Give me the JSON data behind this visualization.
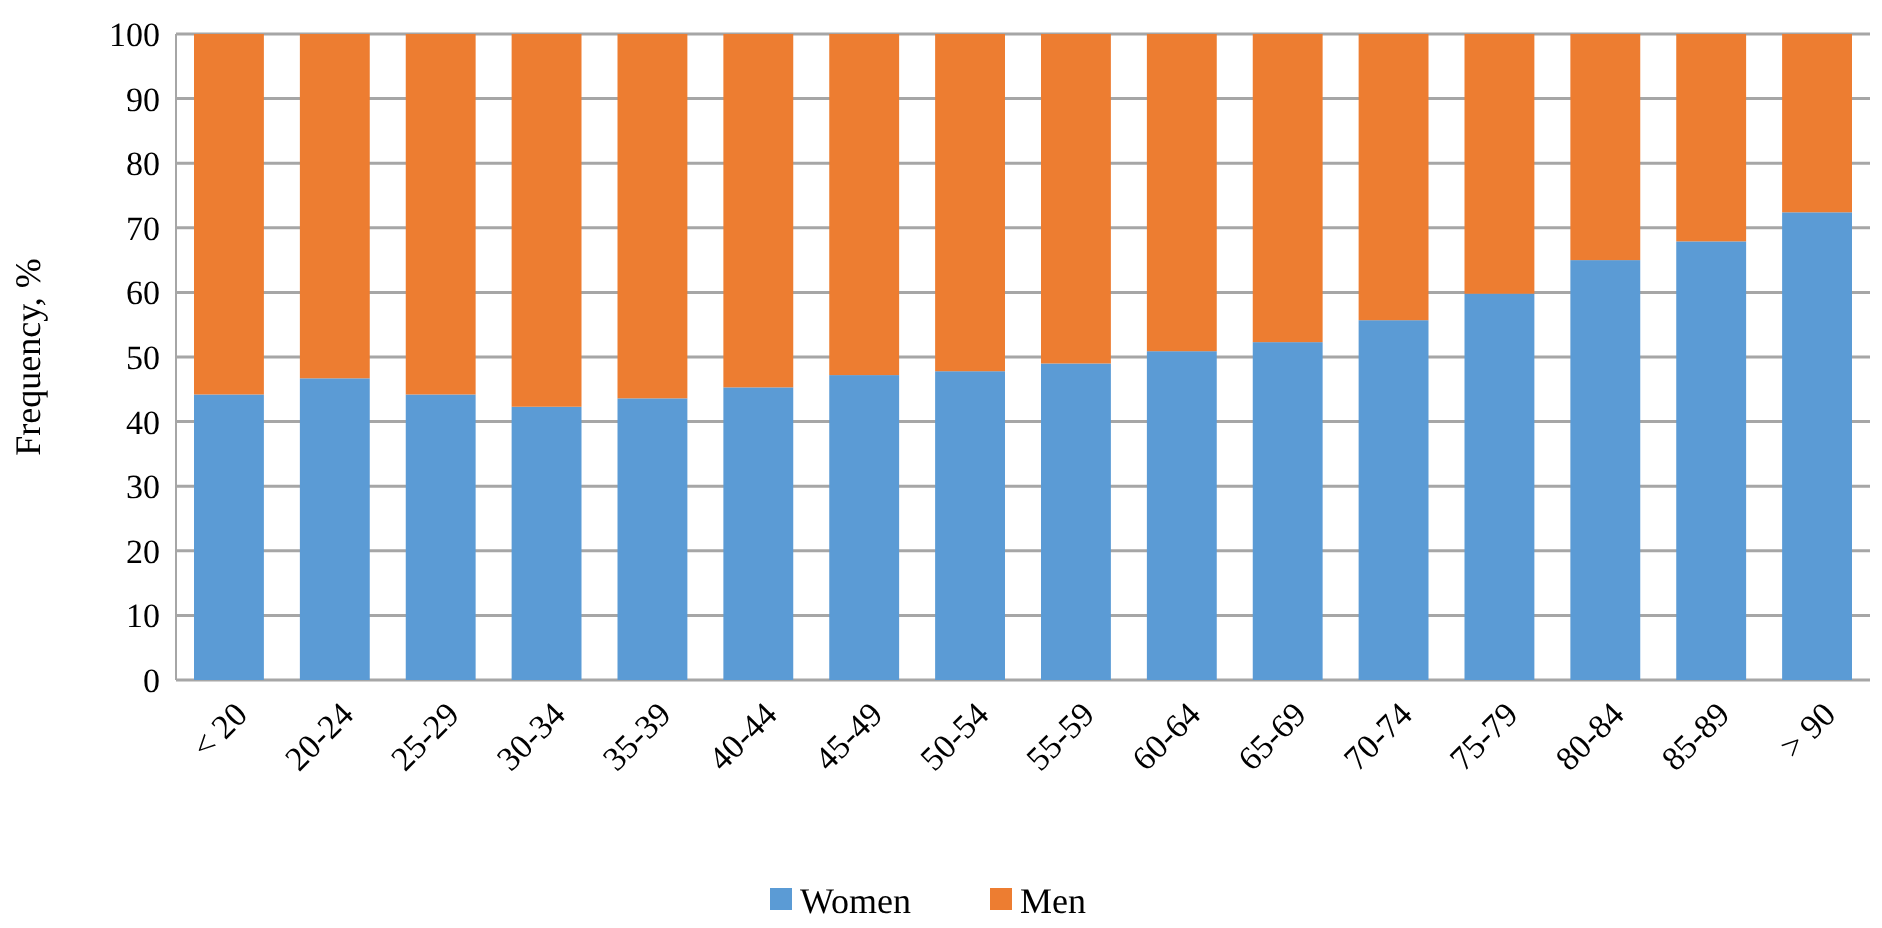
{
  "chart_data": {
    "type": "bar",
    "stacked": true,
    "ylabel": "Frequency, %",
    "categories": [
      "< 20",
      "20-24",
      "25-29",
      "30-34",
      "35-39",
      "40-44",
      "45-49",
      "50-54",
      "55-59",
      "60-64",
      "65-69",
      "70-74",
      "75-79",
      "80-84",
      "85-89",
      "> 90"
    ],
    "series": [
      {
        "name": "Women",
        "color": "#5b9bd5",
        "values": [
          44.2,
          46.7,
          44.2,
          42.3,
          43.6,
          45.3,
          47.2,
          47.8,
          49.0,
          50.9,
          52.3,
          55.7,
          59.8,
          65.0,
          67.9,
          72.4
        ]
      },
      {
        "name": "Men",
        "color": "#ed7d31",
        "values": [
          55.8,
          53.3,
          55.8,
          57.7,
          56.4,
          54.7,
          52.8,
          52.2,
          51.0,
          49.1,
          47.7,
          44.3,
          40.2,
          35.0,
          32.1,
          27.6
        ]
      }
    ],
    "ylim": [
      0,
      100
    ],
    "yticks": [
      0,
      10,
      20,
      30,
      40,
      50,
      60,
      70,
      80,
      90,
      100
    ],
    "grid": "y",
    "legend": "bottom"
  }
}
